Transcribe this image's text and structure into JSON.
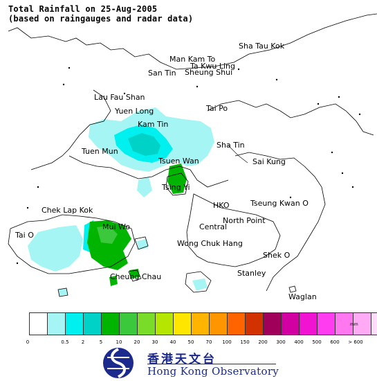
{
  "title": {
    "line1": "Total Rainfall on 25-Aug-2005",
    "line2": "(based on raingauges and radar data)"
  },
  "places": [
    {
      "id": "sha-tau-kok",
      "label": "Sha Tau Kok"
    },
    {
      "id": "man-kam-to",
      "label": "Man Kam To"
    },
    {
      "id": "ta-kwu-ling",
      "label": "Ta Kwu Ling"
    },
    {
      "id": "san-tin",
      "label": "San Tin"
    },
    {
      "id": "sheung-shui",
      "label": "Sheung Shui"
    },
    {
      "id": "lau-fau-shan",
      "label": "Lau Fau Shan"
    },
    {
      "id": "yuen-long",
      "label": "Yuen Long"
    },
    {
      "id": "tai-po",
      "label": "Tai Po"
    },
    {
      "id": "kam-tin",
      "label": "Kam Tin"
    },
    {
      "id": "tuen-mun",
      "label": "Tuen Mun"
    },
    {
      "id": "sha-tin",
      "label": "Sha Tin"
    },
    {
      "id": "tsuen-wan",
      "label": "Tsuen Wan"
    },
    {
      "id": "sai-kung",
      "label": "Sai Kung"
    },
    {
      "id": "tsing-yi",
      "label": "Tsing Yi"
    },
    {
      "id": "chek-lap-kok",
      "label": "Chek Lap Kok"
    },
    {
      "id": "hko",
      "label": "HKO"
    },
    {
      "id": "tseung-kwan-o",
      "label": "Tseung Kwan O"
    },
    {
      "id": "mui-wo",
      "label": "Mui Wo"
    },
    {
      "id": "north-point",
      "label": "North Point"
    },
    {
      "id": "central",
      "label": "Central"
    },
    {
      "id": "tai-o",
      "label": "Tai O"
    },
    {
      "id": "wong-chuk-hang",
      "label": "Wong Chuk Hang"
    },
    {
      "id": "shek-o",
      "label": "Shek O"
    },
    {
      "id": "cheung-chau",
      "label": "Cheung Chau"
    },
    {
      "id": "stanley",
      "label": "Stanley"
    },
    {
      "id": "waglan",
      "label": "Waglan"
    }
  ],
  "legend": {
    "unit": "mm",
    "colors": [
      "#ffffff",
      "#a6f5f5",
      "#00f0f0",
      "#00d2c8",
      "#00b400",
      "#3cc83c",
      "#78dc28",
      "#b4e600",
      "#ffe600",
      "#ffb400",
      "#ff9600",
      "#ff6400",
      "#d23200",
      "#a0005a",
      "#d200a0",
      "#f014d2",
      "#ff3cf0",
      "#ff78f0",
      "#ffaaf5",
      "#ffdcfa"
    ],
    "ticks": [
      "0",
      "0.5",
      "2",
      "5",
      "10",
      "20",
      "30",
      "40",
      "50",
      "70",
      "100",
      "150",
      "200",
      "300",
      "400",
      "500",
      "600",
      "> 600"
    ]
  },
  "logo": {
    "chinese": "香港天文台",
    "english": "Hong Kong Observatory"
  }
}
